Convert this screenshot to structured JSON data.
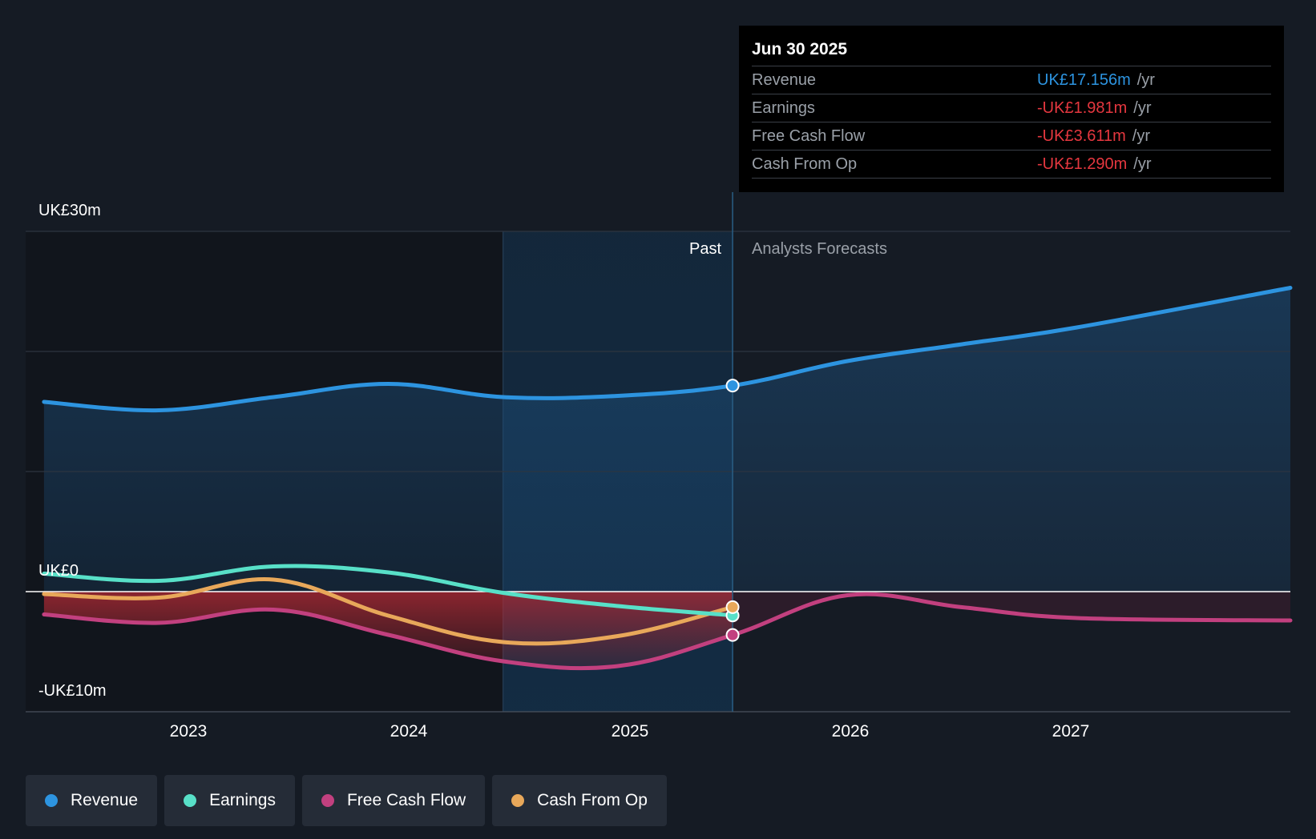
{
  "chart_data": {
    "type": "line",
    "title": "",
    "x_range": [
      2022.42,
      2027.93
    ],
    "ylim": [
      -10,
      30
    ],
    "y_ticks": [
      {
        "value": 30,
        "label": "UK£30m"
      },
      {
        "value": 0,
        "label": "UK£0"
      },
      {
        "value": -10,
        "label": "-UK£10m"
      }
    ],
    "gridlines": [
      30,
      20,
      10,
      0,
      -10
    ],
    "x_ticks": [
      {
        "value": 2023.0,
        "label": "2023"
      },
      {
        "value": 2024.0,
        "label": "2024"
      },
      {
        "value": 2025.0,
        "label": "2025"
      },
      {
        "value": 2026.0,
        "label": "2026"
      },
      {
        "value": 2027.0,
        "label": "2027"
      }
    ],
    "past_end": 2025.5,
    "highlight_start": 2024.5,
    "regions": {
      "past": "Past",
      "forecast": "Analysts Forecasts"
    },
    "series": [
      {
        "name": "Revenue",
        "color": "#2d94e0",
        "points": [
          [
            2022.5,
            15.8
          ],
          [
            2023.0,
            15.1
          ],
          [
            2023.5,
            16.2
          ],
          [
            2024.0,
            17.3
          ],
          [
            2024.5,
            16.2
          ],
          [
            2025.0,
            16.3
          ],
          [
            2025.5,
            17.156
          ],
          [
            2026.0,
            19.2
          ],
          [
            2026.5,
            20.6
          ],
          [
            2027.0,
            22.0
          ],
          [
            2027.93,
            25.3
          ]
        ]
      },
      {
        "name": "Earnings",
        "color": "#58e0c8",
        "points": [
          [
            2022.5,
            1.5
          ],
          [
            2023.0,
            0.9
          ],
          [
            2023.5,
            2.1
          ],
          [
            2024.0,
            1.6
          ],
          [
            2024.5,
            -0.1
          ],
          [
            2025.0,
            -1.2
          ],
          [
            2025.5,
            -1.981
          ]
        ]
      },
      {
        "name": "Free Cash Flow",
        "color": "#c2407f",
        "points": [
          [
            2022.5,
            -1.9
          ],
          [
            2023.0,
            -2.6
          ],
          [
            2023.5,
            -1.5
          ],
          [
            2024.0,
            -3.6
          ],
          [
            2024.5,
            -5.8
          ],
          [
            2025.0,
            -6.2
          ],
          [
            2025.5,
            -3.611
          ],
          [
            2026.0,
            -0.3
          ],
          [
            2026.5,
            -1.3
          ],
          [
            2027.0,
            -2.2
          ],
          [
            2027.93,
            -2.4
          ]
        ]
      },
      {
        "name": "Cash From Op",
        "color": "#e8a85a",
        "points": [
          [
            2022.5,
            -0.2
          ],
          [
            2023.0,
            -0.5
          ],
          [
            2023.5,
            1.0
          ],
          [
            2024.0,
            -2.0
          ],
          [
            2024.5,
            -4.2
          ],
          [
            2025.0,
            -3.7
          ],
          [
            2025.5,
            -1.29
          ]
        ]
      }
    ]
  },
  "tooltip": {
    "date": "Jun 30 2025",
    "rows": [
      {
        "label": "Revenue",
        "value": "UK£17.156m",
        "unit": "/yr",
        "color": "#2d94e0"
      },
      {
        "label": "Earnings",
        "value": "-UK£1.981m",
        "unit": "/yr",
        "color": "#e5373f"
      },
      {
        "label": "Free Cash Flow",
        "value": "-UK£3.611m",
        "unit": "/yr",
        "color": "#e5373f"
      },
      {
        "label": "Cash From Op",
        "value": "-UK£1.290m",
        "unit": "/yr",
        "color": "#e5373f"
      }
    ]
  },
  "legend": [
    {
      "label": "Revenue",
      "color": "#2d94e0"
    },
    {
      "label": "Earnings",
      "color": "#58e0c8"
    },
    {
      "label": "Free Cash Flow",
      "color": "#c2407f"
    },
    {
      "label": "Cash From Op",
      "color": "#e8a85a"
    }
  ]
}
